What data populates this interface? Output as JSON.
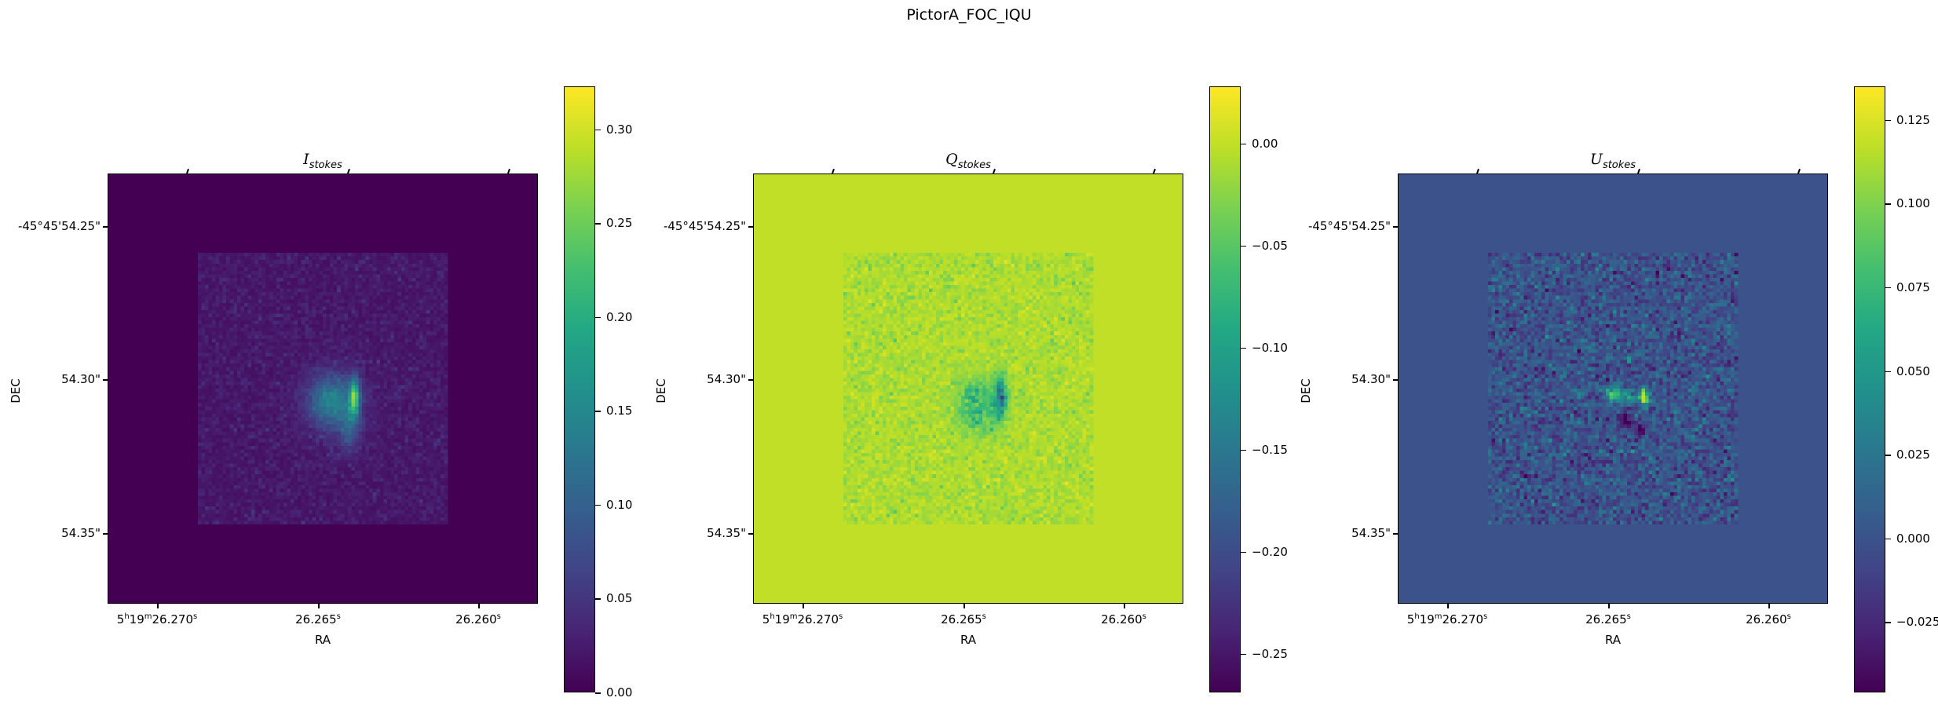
{
  "figure": {
    "title": "PictorA_FOC_IQU"
  },
  "chart_data": [
    {
      "type": "heatmap",
      "title_symbol": "I",
      "title_subscript": "stokes",
      "xlabel": "RA",
      "ylabel": "DEC",
      "x_ticks": [
        [
          "5",
          "19",
          "26.270"
        ],
        [
          "",
          "",
          "26.265"
        ],
        [
          "",
          "",
          "26.260"
        ]
      ],
      "y_ticks": [
        "-45°45'54.25\"",
        "54.30\"",
        "54.35\""
      ],
      "colormap": "viridis",
      "background_value": 0.0,
      "colorbar": {
        "range": [
          0.0,
          0.323
        ],
        "ticks": [
          0.0,
          0.05,
          0.1,
          0.15,
          0.2,
          0.25,
          0.3
        ],
        "tick_labels": [
          "0.00",
          "0.05",
          "0.10",
          "0.15",
          "0.20",
          "0.25",
          "0.30"
        ]
      }
    },
    {
      "type": "heatmap",
      "title_symbol": "Q",
      "title_subscript": "stokes",
      "xlabel": "RA",
      "ylabel": "DEC",
      "x_ticks": [
        [
          "5",
          "19",
          "26.270"
        ],
        [
          "",
          "",
          "26.265"
        ],
        [
          "",
          "",
          "26.260"
        ]
      ],
      "y_ticks": [
        "-45°45'54.25\"",
        "54.30\"",
        "54.35\""
      ],
      "colormap": "viridis",
      "background_value": 0.0,
      "colorbar": {
        "range": [
          -0.269,
          0.028
        ],
        "ticks": [
          0.0,
          -0.05,
          -0.1,
          -0.15,
          -0.2,
          -0.25
        ],
        "tick_labels": [
          "0.00",
          "−0.05",
          "−0.10",
          "−0.15",
          "−0.20",
          "−0.25"
        ]
      }
    },
    {
      "type": "heatmap",
      "title_symbol": "U",
      "title_subscript": "stokes",
      "xlabel": "RA",
      "ylabel": "DEC",
      "x_ticks": [
        [
          "5",
          "19",
          "26.270"
        ],
        [
          "",
          "",
          "26.265"
        ],
        [
          "",
          "",
          "26.260"
        ]
      ],
      "y_ticks": [
        "-45°45'54.25\"",
        "54.30\"",
        "54.35\""
      ],
      "colormap": "viridis",
      "background_value": 0.0,
      "colorbar": {
        "range": [
          -0.046,
          0.135
        ],
        "ticks": [
          0.125,
          0.1,
          0.075,
          0.05,
          0.025,
          0.0,
          -0.025
        ],
        "tick_labels": [
          "0.125",
          "0.100",
          "0.075",
          "0.050",
          "0.025",
          "0.000",
          "−0.025"
        ]
      }
    }
  ]
}
